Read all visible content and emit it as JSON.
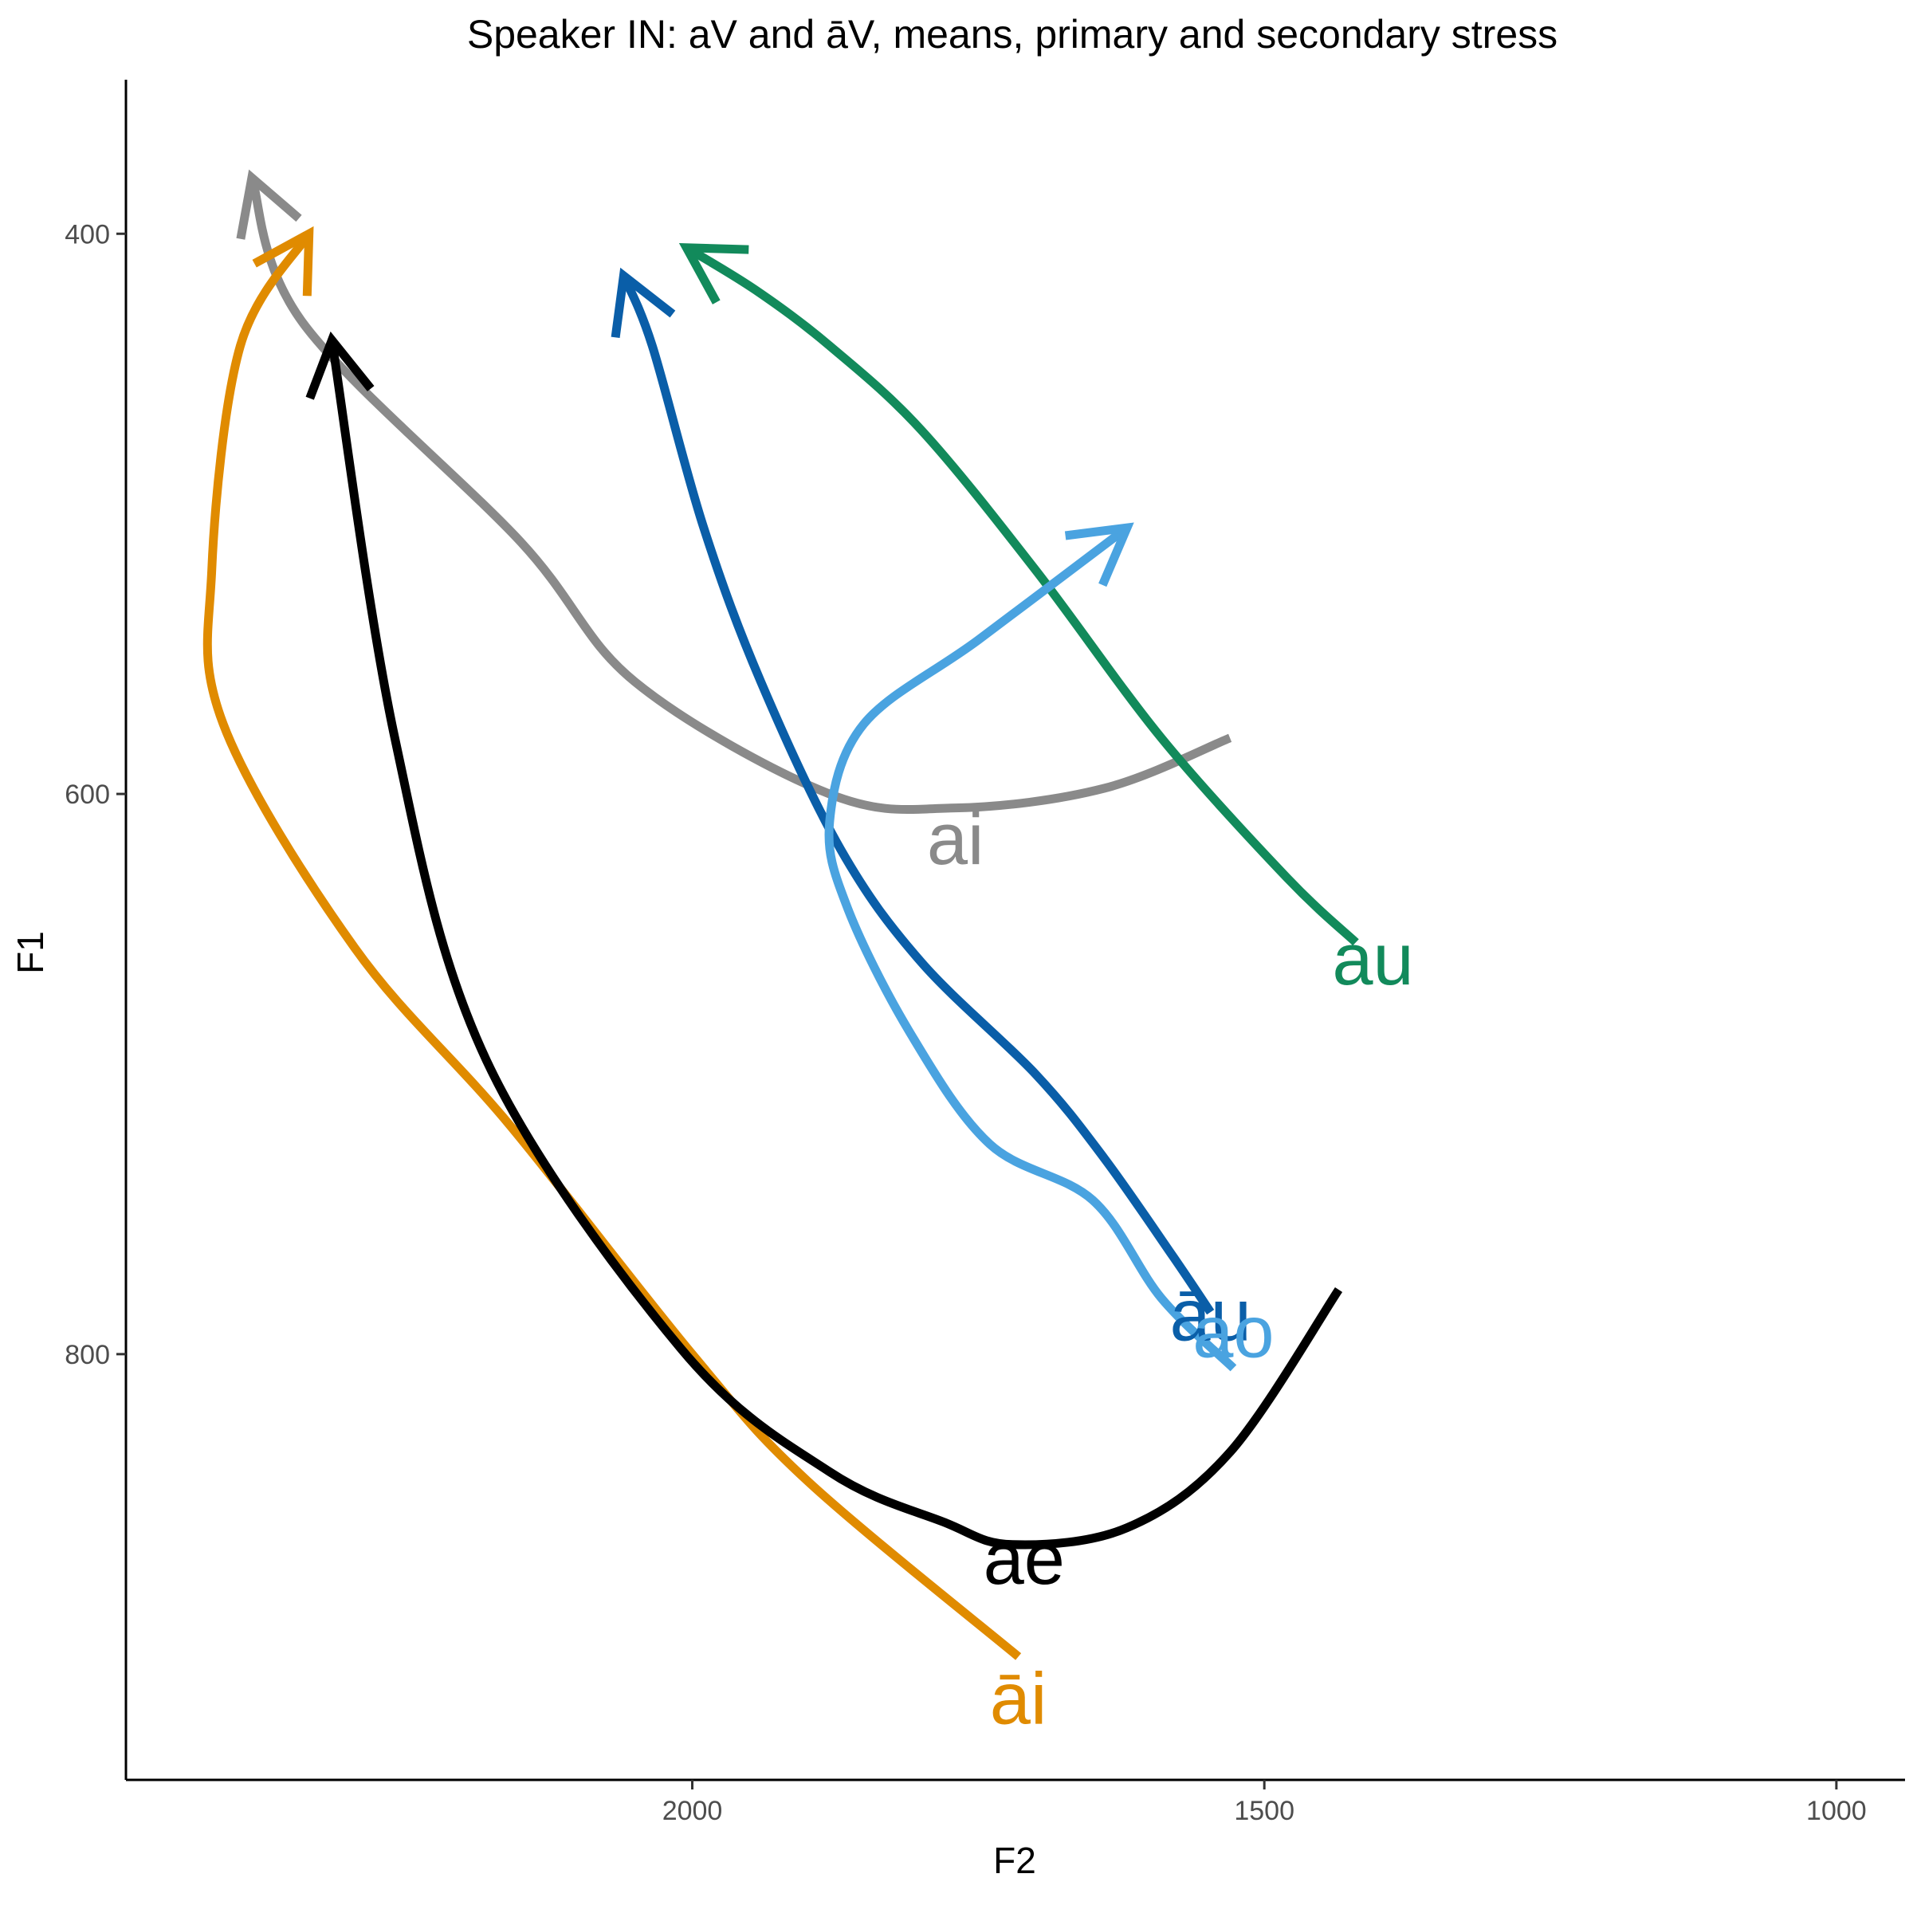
{
  "chart_data": {
    "type": "line",
    "title": "Speaker IN: aV and āV, means, primary and secondary stress",
    "xlabel": "F2",
    "ylabel": "F1",
    "x_reversed": true,
    "y_reversed": true,
    "xlim": [
      2495,
      940
    ],
    "ylim": [
      345,
      952
    ],
    "x_ticks": [
      2000,
      1500,
      1000
    ],
    "y_ticks": [
      400,
      600,
      800
    ],
    "grid": false,
    "legend": "none",
    "series": [
      {
        "name": "ai",
        "color": "#8a8a8a",
        "points": [
          [
            1530,
            580
          ],
          [
            1640,
            598
          ],
          [
            1770,
            605
          ],
          [
            1880,
            600
          ],
          [
            2050,
            560
          ],
          [
            2150,
            510
          ],
          [
            2340,
            432
          ],
          [
            2385,
            380
          ]
        ]
      },
      {
        "name": "āi",
        "color": "#e08b00",
        "points": [
          [
            1715,
            908
          ],
          [
            1900,
            845
          ],
          [
            2000,
            800
          ],
          [
            2160,
            718
          ],
          [
            2295,
            655
          ],
          [
            2410,
            575
          ],
          [
            2420,
            520
          ],
          [
            2395,
            440
          ],
          [
            2335,
            400
          ]
        ]
      },
      {
        "name": "ae",
        "color": "#000000",
        "points": [
          [
            1435,
            777
          ],
          [
            1530,
            835
          ],
          [
            1620,
            862
          ],
          [
            1720,
            868
          ],
          [
            1780,
            860
          ],
          [
            1880,
            842
          ],
          [
            2010,
            798
          ],
          [
            2180,
            695
          ],
          [
            2260,
            580
          ],
          [
            2315,
            438
          ]
        ]
      },
      {
        "name": "au",
        "color": "#128a5b",
        "points": [
          [
            1420,
            653
          ],
          [
            1480,
            630
          ],
          [
            1590,
            580
          ],
          [
            1700,
            520
          ],
          [
            1800,
            470
          ],
          [
            1880,
            440
          ],
          [
            1945,
            420
          ],
          [
            2005,
            405
          ]
        ]
      },
      {
        "name": "āu",
        "color": "#0a5ea8",
        "points": [
          [
            1547,
            785
          ],
          [
            1580,
            765
          ],
          [
            1640,
            730
          ],
          [
            1700,
            700
          ],
          [
            1800,
            660
          ],
          [
            1870,
            620
          ],
          [
            1940,
            560
          ],
          [
            1990,
            505
          ],
          [
            2035,
            440
          ],
          [
            2060,
            415
          ]
        ]
      },
      {
        "name": "ao",
        "color": "#4aa3e0",
        "points": [
          [
            1527,
            805
          ],
          [
            1590,
            780
          ],
          [
            1650,
            745
          ],
          [
            1740,
            725
          ],
          [
            1810,
            685
          ],
          [
            1865,
            640
          ],
          [
            1880,
            610
          ],
          [
            1850,
            575
          ],
          [
            1750,
            545
          ],
          [
            1620,
            505
          ]
        ]
      }
    ],
    "labels": [
      {
        "text": "ai",
        "x": 1770,
        "y": 625,
        "color": "#8a8a8a"
      },
      {
        "text": "āi",
        "x": 1715,
        "y": 932,
        "color": "#e08b00"
      },
      {
        "text": "ae",
        "x": 1710,
        "y": 882,
        "color": "#000000"
      },
      {
        "text": "au",
        "x": 1405,
        "y": 668,
        "color": "#128a5b"
      },
      {
        "text": "āu",
        "x": 1547,
        "y": 795,
        "color": "#0a5ea8"
      },
      {
        "text": "ao",
        "x": 1527,
        "y": 801,
        "color": "#4aa3e0"
      }
    ]
  }
}
